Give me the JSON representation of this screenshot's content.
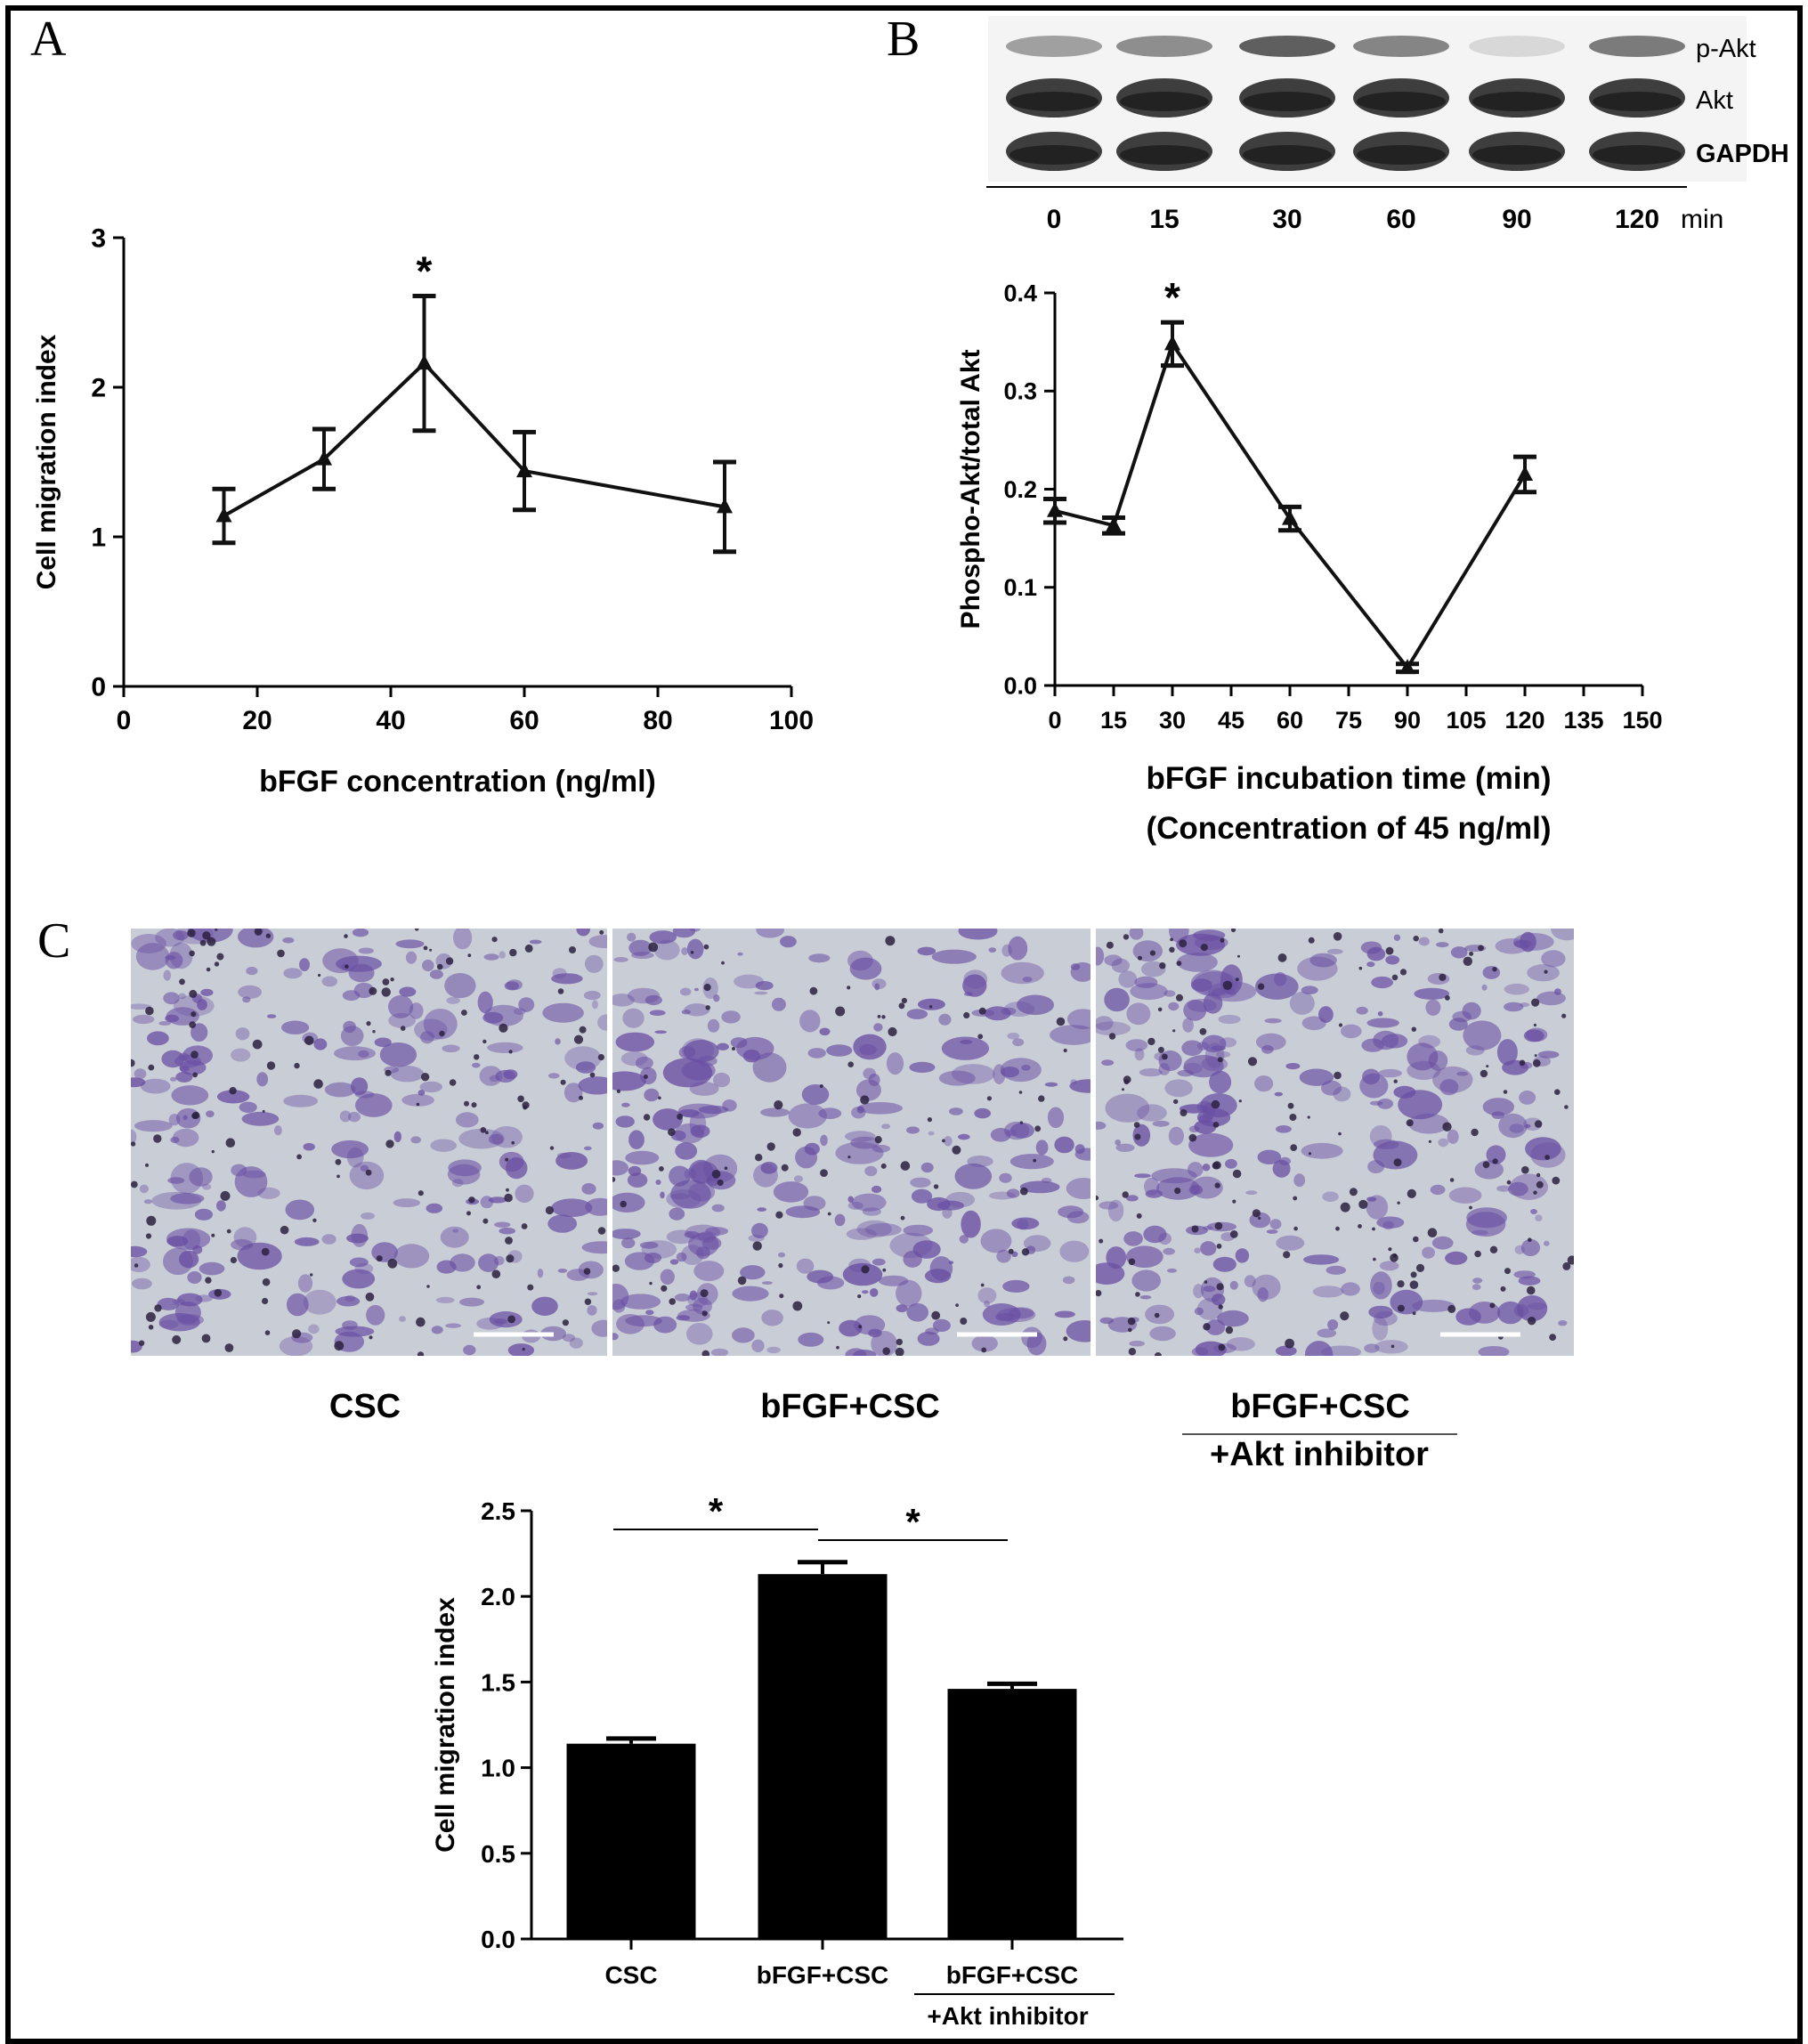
{
  "panels": {
    "A": {
      "letter": "A"
    },
    "B": {
      "letter": "B"
    },
    "C": {
      "letter": "C"
    }
  },
  "western_blot": {
    "rows": [
      "p-Akt",
      "Akt",
      "GAPDH"
    ],
    "lane_labels": [
      "0",
      "15",
      "30",
      "60",
      "90",
      "120"
    ],
    "unit": "min",
    "pakt_band_intensity": [
      0.45,
      0.55,
      0.8,
      0.6,
      0.15,
      0.65
    ]
  },
  "micrographs": [
    {
      "label": "CSC",
      "label2": ""
    },
    {
      "label": "bFGF+CSC",
      "label2": ""
    },
    {
      "label": "bFGF+CSC",
      "label2": "+Akt inhibitor"
    }
  ],
  "colors": {
    "stain": "#6a4fa3",
    "dark_stain": "#2b2140",
    "background_field": "#c9cdd6"
  },
  "chart_data": [
    {
      "id": "A",
      "type": "line",
      "xlabel": "bFGF concentration (ng/ml)",
      "ylabel": "Cell migration index",
      "xlim": [
        0,
        100
      ],
      "ylim": [
        0,
        3
      ],
      "xticks": [
        0,
        20,
        40,
        60,
        80,
        100
      ],
      "yticks": [
        0,
        1,
        2,
        3
      ],
      "x": [
        15,
        30,
        45,
        60,
        90
      ],
      "y": [
        1.14,
        1.52,
        2.16,
        1.44,
        1.2
      ],
      "err": [
        0.18,
        0.2,
        0.45,
        0.26,
        0.3
      ],
      "annotations": [
        {
          "x": 45,
          "text": "*"
        }
      ],
      "grid": false
    },
    {
      "id": "B",
      "type": "line",
      "xlabel": "bFGF incubation time (min)",
      "xlabel2": "(Concentration of 45 ng/ml)",
      "ylabel": "Phospho-Akt/total Akt",
      "xlim": [
        0,
        150
      ],
      "ylim": [
        0,
        0.4
      ],
      "xticks": [
        0,
        15,
        30,
        45,
        60,
        75,
        90,
        105,
        120,
        135,
        150
      ],
      "yticks": [
        "0.0",
        "0.1",
        "0.2",
        "0.3",
        "0.4"
      ],
      "x": [
        0,
        15,
        30,
        60,
        90,
        120
      ],
      "y": [
        0.178,
        0.163,
        0.348,
        0.17,
        0.018,
        0.215
      ],
      "err": [
        0.012,
        0.008,
        0.022,
        0.012,
        0.004,
        0.018
      ],
      "annotations": [
        {
          "x": 30,
          "text": "*"
        }
      ],
      "grid": false
    },
    {
      "id": "C",
      "type": "bar",
      "ylabel": "Cell migration index",
      "categories": [
        "CSC",
        "bFGF+CSC",
        "bFGF+CSC"
      ],
      "category_line2": [
        "",
        "",
        "+Akt inhibitor"
      ],
      "values": [
        1.14,
        2.13,
        1.46
      ],
      "err": [
        0.03,
        0.07,
        0.03
      ],
      "ylim": [
        0,
        2.5
      ],
      "yticks": [
        "0.0",
        "0.5",
        "1.0",
        "1.5",
        "2.0",
        "2.5"
      ],
      "significance": [
        {
          "from": 0,
          "to": 1,
          "text": "*"
        },
        {
          "from": 1,
          "to": 2,
          "text": "*"
        }
      ],
      "grid": false
    }
  ]
}
